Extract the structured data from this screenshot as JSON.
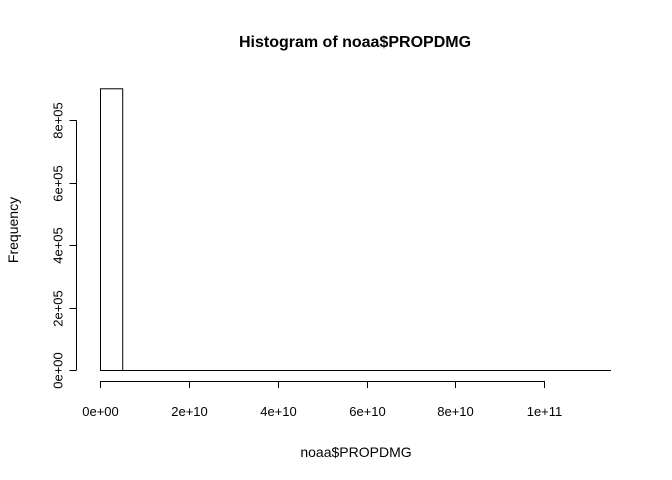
{
  "chart_data": {
    "type": "bar",
    "title": "Histogram of noaa$PROPDMG",
    "xlabel": "noaa$PROPDMG",
    "ylabel": "Frequency",
    "xlim": [
      0,
      115000000000
    ],
    "ylim": [
      0,
      900000
    ],
    "bins": [
      {
        "x0": 0,
        "x1": 5000000000,
        "count": 902297
      }
    ],
    "x_ticks": [
      {
        "value": 0,
        "label": "0e+00"
      },
      {
        "value": 20000000000,
        "label": "2e+10"
      },
      {
        "value": 40000000000,
        "label": "4e+10"
      },
      {
        "value": 60000000000,
        "label": "6e+10"
      },
      {
        "value": 80000000000,
        "label": "8e+10"
      },
      {
        "value": 100000000000,
        "label": "1e+11"
      }
    ],
    "y_ticks": [
      {
        "value": 0,
        "label": "0e+00"
      },
      {
        "value": 200000,
        "label": "2e+05"
      },
      {
        "value": 400000,
        "label": "4e+05"
      },
      {
        "value": 600000,
        "label": "6e+05"
      },
      {
        "value": 800000,
        "label": "8e+05"
      }
    ],
    "grid": false,
    "bar_fill": "#ffffff",
    "bar_stroke": "#000000"
  }
}
